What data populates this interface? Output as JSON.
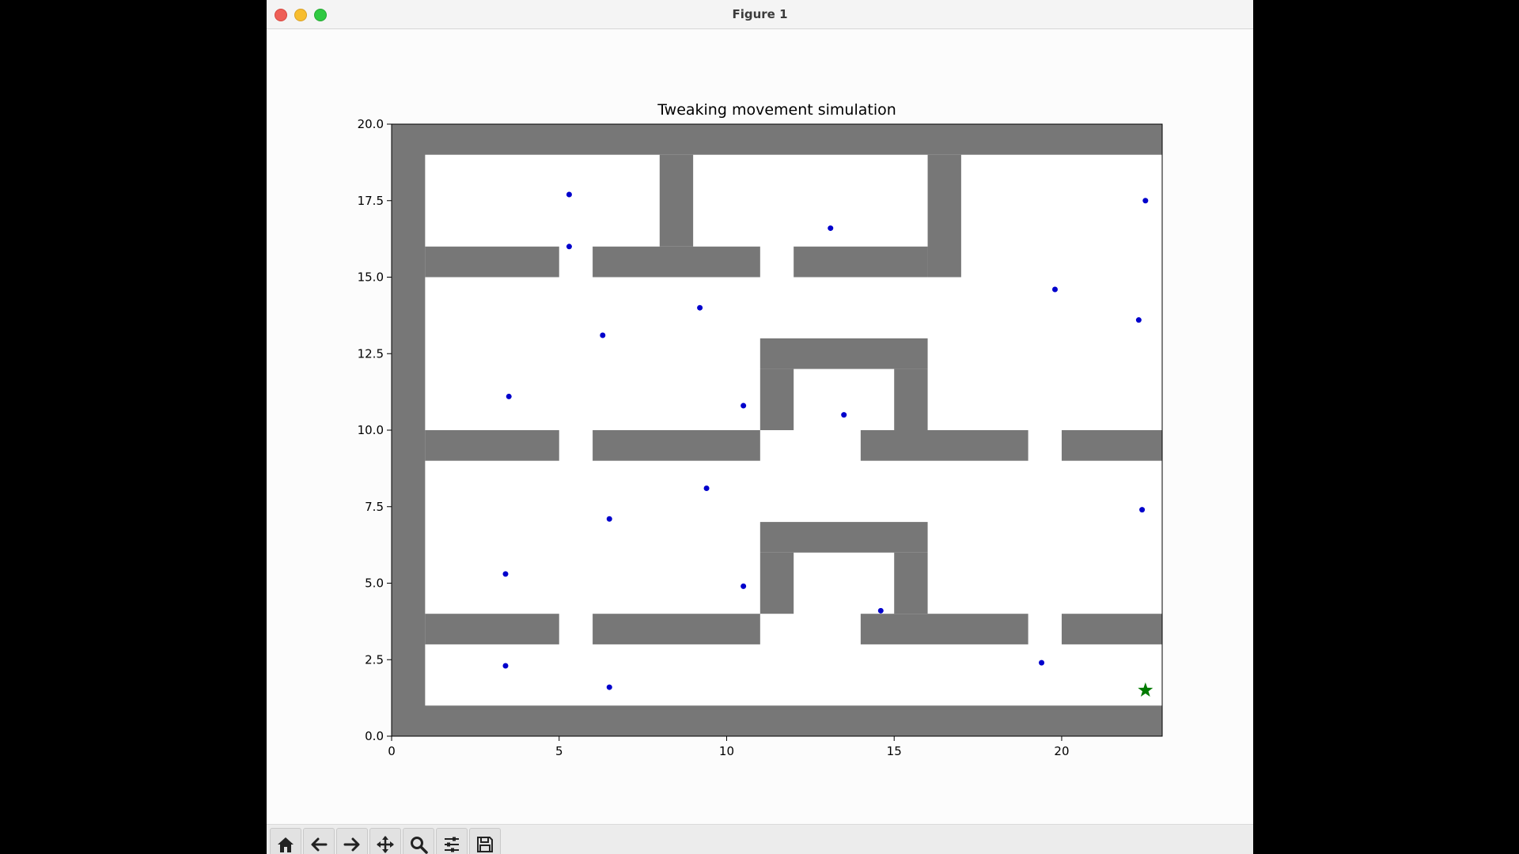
{
  "window": {
    "title": "Figure 1"
  },
  "toolbar": {
    "buttons": [
      {
        "name": "home-button",
        "icon": "home-icon"
      },
      {
        "name": "back-button",
        "icon": "arrow-left-icon"
      },
      {
        "name": "forward-button",
        "icon": "arrow-right-icon"
      },
      {
        "name": "pan-button",
        "icon": "move-arrows-icon"
      },
      {
        "name": "zoom-button",
        "icon": "magnifier-icon"
      },
      {
        "name": "configure-subplots-button",
        "icon": "sliders-icon"
      },
      {
        "name": "save-button",
        "icon": "floppy-disk-icon"
      }
    ]
  },
  "colors": {
    "wall": "#777777",
    "agent": "#0000cc",
    "goal": "#007a00"
  },
  "chart_data": {
    "type": "scatter",
    "title": "Tweaking movement simulation",
    "xlabel": "",
    "ylabel": "",
    "xlim": [
      0,
      23
    ],
    "ylim": [
      0,
      20
    ],
    "xticks": [
      {
        "value": 0,
        "label": "0"
      },
      {
        "value": 5,
        "label": "5"
      },
      {
        "value": 10,
        "label": "10"
      },
      {
        "value": 15,
        "label": "15"
      },
      {
        "value": 20,
        "label": "20"
      }
    ],
    "yticks": [
      {
        "value": 0,
        "label": "0.0"
      },
      {
        "value": 2.5,
        "label": "2.5"
      },
      {
        "value": 5,
        "label": "5.0"
      },
      {
        "value": 7.5,
        "label": "7.5"
      },
      {
        "value": 10,
        "label": "10.0"
      },
      {
        "value": 12.5,
        "label": "12.5"
      },
      {
        "value": 15,
        "label": "15.0"
      },
      {
        "value": 17.5,
        "label": "17.5"
      },
      {
        "value": 20,
        "label": "20.0"
      }
    ],
    "grid": false,
    "walls": [
      [
        0,
        19,
        23,
        20
      ],
      [
        0,
        0,
        23,
        1
      ],
      [
        0,
        0,
        1,
        20
      ],
      [
        8,
        16,
        9,
        19
      ],
      [
        16,
        15,
        17,
        19
      ],
      [
        1,
        15,
        5,
        16
      ],
      [
        6,
        15,
        11,
        16
      ],
      [
        12,
        15,
        16,
        16
      ],
      [
        11,
        12,
        16,
        13
      ],
      [
        11,
        10,
        12,
        12
      ],
      [
        15,
        10,
        16,
        12
      ],
      [
        1,
        9,
        5,
        10
      ],
      [
        6,
        9,
        11,
        10
      ],
      [
        14,
        9,
        19,
        10
      ],
      [
        20,
        9,
        23,
        10
      ],
      [
        11,
        6,
        16,
        7
      ],
      [
        11,
        4,
        12,
        6
      ],
      [
        15,
        4,
        16,
        6
      ],
      [
        1,
        3,
        5,
        4
      ],
      [
        6,
        3,
        11,
        4
      ],
      [
        14,
        3,
        19,
        4
      ],
      [
        20,
        3,
        23,
        4
      ]
    ],
    "series": [
      {
        "marker": "dot",
        "points": [
          [
            5.3,
            17.7
          ],
          [
            5.3,
            16.0
          ],
          [
            13.1,
            16.6
          ],
          [
            22.5,
            17.5
          ],
          [
            9.2,
            14.0
          ],
          [
            6.3,
            13.1
          ],
          [
            19.8,
            14.6
          ],
          [
            22.3,
            13.6
          ],
          [
            3.5,
            11.1
          ],
          [
            10.5,
            10.8
          ],
          [
            13.5,
            10.5
          ],
          [
            9.4,
            8.1
          ],
          [
            6.5,
            7.1
          ],
          [
            22.4,
            7.4
          ],
          [
            3.4,
            5.3
          ],
          [
            10.5,
            4.9
          ],
          [
            14.6,
            4.1
          ],
          [
            3.4,
            2.3
          ],
          [
            6.5,
            1.6
          ],
          [
            19.4,
            2.4
          ]
        ]
      },
      {
        "marker": "star",
        "points": [
          [
            22.5,
            1.5
          ]
        ]
      }
    ]
  }
}
